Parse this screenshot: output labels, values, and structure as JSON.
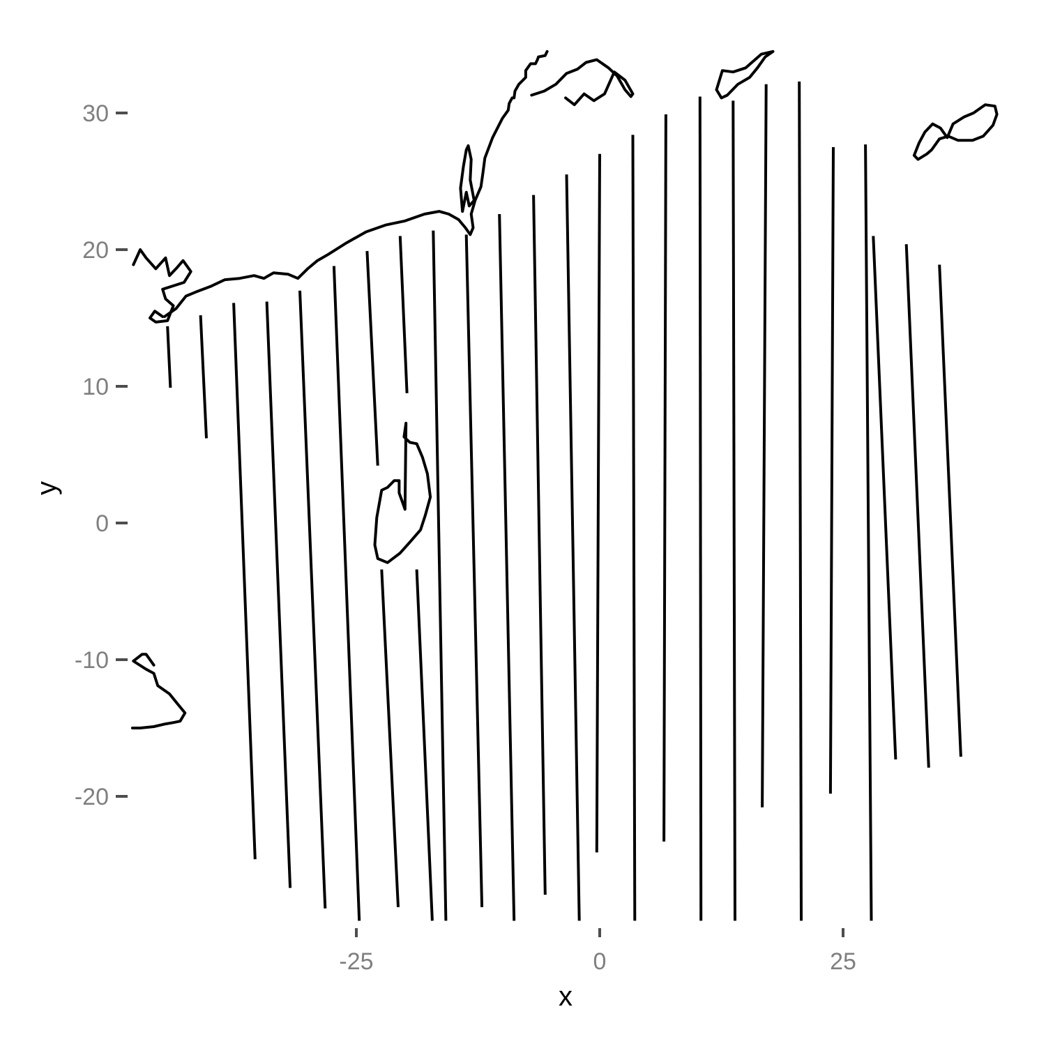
{
  "chart_data": {
    "type": "line",
    "title": "",
    "xlabel": "x",
    "ylabel": "y",
    "xlim": [
      -48,
      42
    ],
    "ylim": [
      -31.5,
      34.5
    ],
    "x_ticks": [
      -25,
      0,
      25
    ],
    "y_ticks": [
      -20,
      -10,
      0,
      10,
      20,
      30
    ],
    "x_tick_labels": [
      "-25",
      "0",
      "25"
    ],
    "y_tick_labels": [
      "-20",
      "-10",
      "0",
      "10",
      "20",
      "30"
    ],
    "grid": false,
    "legend": "none",
    "line_color": "#000000",
    "transects": [
      {
        "x": [
          -44.4,
          -44.1
        ],
        "y": [
          14.4,
          9.9
        ]
      },
      {
        "x": [
          -41.0,
          -40.4
        ],
        "y": [
          15.2,
          6.2
        ]
      },
      {
        "x": [
          -37.6,
          -35.4
        ],
        "y": [
          16.1,
          -24.6
        ]
      },
      {
        "x": [
          -34.2,
          -31.8
        ],
        "y": [
          16.2,
          -26.7
        ]
      },
      {
        "x": [
          -30.8,
          -28.2
        ],
        "y": [
          17.0,
          -28.2
        ]
      },
      {
        "x": [
          -27.3,
          -24.7
        ],
        "y": [
          18.8,
          -29.1
        ]
      },
      {
        "x": [
          -23.9,
          -22.8
        ],
        "y": [
          19.9,
          4.2
        ]
      },
      {
        "x": [
          -22.4,
          -20.7
        ],
        "y": [
          -3.4,
          -28.1
        ]
      },
      {
        "x": [
          -20.5,
          -19.8
        ],
        "y": [
          21.0,
          9.5
        ]
      },
      {
        "x": [
          -18.8,
          -17.2
        ],
        "y": [
          -3.4,
          -29.1
        ]
      },
      {
        "x": [
          -17.1,
          -15.8
        ],
        "y": [
          21.4,
          -29.1
        ]
      },
      {
        "x": [
          -13.7,
          -12.1
        ],
        "y": [
          21.1,
          -28.1
        ]
      },
      {
        "x": [
          -10.3,
          -8.8
        ],
        "y": [
          22.6,
          -29.1
        ]
      },
      {
        "x": [
          -6.8,
          -5.6
        ],
        "y": [
          24.0,
          -27.2
        ]
      },
      {
        "x": [
          -3.4,
          -2.1
        ],
        "y": [
          25.5,
          -29.1
        ]
      },
      {
        "x": [
          0.0,
          -0.3
        ],
        "y": [
          27.0,
          -24.1
        ]
      },
      {
        "x": [
          3.4,
          3.6
        ],
        "y": [
          28.4,
          -29.1
        ]
      },
      {
        "x": [
          6.8,
          6.6
        ],
        "y": [
          29.9,
          -23.3
        ]
      },
      {
        "x": [
          10.3,
          10.4
        ],
        "y": [
          31.2,
          -29.1
        ]
      },
      {
        "x": [
          13.7,
          13.9
        ],
        "y": [
          30.9,
          -29.1
        ]
      },
      {
        "x": [
          17.1,
          16.7
        ],
        "y": [
          32.1,
          -20.8
        ]
      },
      {
        "x": [
          20.5,
          20.7
        ],
        "y": [
          32.3,
          -29.1
        ]
      },
      {
        "x": [
          24.0,
          23.7
        ],
        "y": [
          27.5,
          -19.8
        ]
      },
      {
        "x": [
          27.3,
          27.9
        ],
        "y": [
          27.7,
          -29.1
        ]
      },
      {
        "x": [
          28.1,
          30.4
        ],
        "y": [
          21.0,
          -17.3
        ]
      },
      {
        "x": [
          31.5,
          33.8
        ],
        "y": [
          20.4,
          -17.9
        ]
      },
      {
        "x": [
          34.9,
          37.1
        ],
        "y": [
          18.9,
          -17.1
        ]
      }
    ],
    "coastlines": [
      {
        "name": "mainland",
        "x": [
          -44.7,
          -43.5,
          -42.5,
          -41.5,
          -40.0,
          -38.5,
          -37.0,
          -35.5,
          -34.5,
          -33.5,
          -32.0,
          -31.0,
          -30.0,
          -29.0,
          -28.0,
          -26.0,
          -24.0,
          -22.0,
          -20.0,
          -18.0,
          -16.5,
          -15.5,
          -14.5,
          -13.8,
          -13.3,
          -13.0,
          -13.2,
          -12.8,
          -12.2,
          -12.0,
          -11.8,
          -11.0,
          -10.0,
          -9.4,
          -9.3,
          -9.0,
          -8.8,
          -8.7,
          -8.3,
          -7.6,
          -7.6,
          -7.1,
          -6.6,
          -6.4,
          -6.3,
          -5.6,
          -5.4
        ],
        "y": [
          15.1,
          15.7,
          16.6,
          16.9,
          17.3,
          17.8,
          17.9,
          18.1,
          17.9,
          18.3,
          18.2,
          17.9,
          18.6,
          19.2,
          19.6,
          20.5,
          21.3,
          21.8,
          22.1,
          22.6,
          22.8,
          22.6,
          22.2,
          21.6,
          21.1,
          21.6,
          22.6,
          23.6,
          24.6,
          25.6,
          26.7,
          28.2,
          29.6,
          30.2,
          30.7,
          31.1,
          31.1,
          31.6,
          32.1,
          32.6,
          33.1,
          33.6,
          33.6,
          33.9,
          34.1,
          34.2,
          34.5
        ]
      },
      {
        "name": "west-inlets",
        "x": [
          -44.9,
          -45.7,
          -46.2,
          -45.6,
          -44.4,
          -43.8,
          -44.6,
          -44.9,
          -43.6,
          -42.7,
          -42.0,
          -42.8,
          -43.4,
          -44.2,
          -44.6,
          -45.6,
          -46.6,
          -47.2,
          -47.9
        ],
        "y": [
          15.1,
          15.5,
          15.0,
          14.7,
          14.8,
          15.9,
          16.4,
          17.1,
          17.4,
          17.6,
          18.4,
          19.2,
          18.7,
          18.1,
          19.4,
          18.6,
          19.4,
          20.0,
          18.9
        ]
      },
      {
        "name": "harbor-neck",
        "x": [
          -14.1,
          -14.3,
          -14.0,
          -13.7,
          -13.5,
          -13.2,
          -13.3,
          -12.9,
          -13.4,
          -13.7,
          -14.1
        ],
        "y": [
          22.8,
          24.5,
          26.1,
          27.3,
          27.6,
          26.6,
          25.1,
          23.6,
          23.2,
          24.2,
          22.8
        ]
      },
      {
        "name": "north-islands",
        "x": [
          -7.0,
          -5.7,
          -4.5,
          -3.4,
          -2.3,
          -1.4,
          -0.3,
          0.9,
          1.8,
          2.6,
          3.2,
          3.4,
          2.6,
          1.5,
          0.5,
          -0.6,
          -1.6,
          -2.6,
          -3.5
        ],
        "y": [
          31.3,
          31.6,
          32.1,
          32.9,
          33.2,
          33.7,
          33.9,
          33.3,
          32.7,
          31.7,
          31.2,
          31.4,
          32.4,
          33.0,
          31.4,
          30.9,
          31.4,
          30.6,
          31.1
        ]
      },
      {
        "name": "east-island-north",
        "x": [
          12.0,
          12.5,
          13.1,
          14.2,
          15.4,
          16.2,
          17.0,
          17.8,
          16.6,
          15.0,
          13.7,
          12.6,
          12.0
        ],
        "y": [
          31.7,
          31.1,
          31.3,
          32.1,
          32.6,
          33.3,
          34.1,
          34.5,
          34.3,
          33.3,
          33.0,
          33.1,
          31.7
        ]
      },
      {
        "name": "east-island",
        "x": [
          32.3,
          32.7,
          33.6,
          34.1,
          34.9,
          35.8,
          36.8,
          38.3,
          39.4,
          40.4,
          40.8,
          40.6,
          39.6,
          38.4,
          37.4,
          36.3,
          35.7,
          35.0,
          34.2,
          33.4,
          32.8,
          32.3
        ],
        "y": [
          26.9,
          26.6,
          27.0,
          27.3,
          28.1,
          28.3,
          28.0,
          28.0,
          28.3,
          29.1,
          29.9,
          30.5,
          30.6,
          30.0,
          29.7,
          29.2,
          28.2,
          28.9,
          29.2,
          28.6,
          27.8,
          26.9
        ]
      },
      {
        "name": "mid-island",
        "x": [
          -19.9,
          -20.1,
          -19.5,
          -18.8,
          -18.2,
          -17.7,
          -17.4,
          -17.9,
          -18.4,
          -19.5,
          -20.5,
          -21.8,
          -22.8,
          -23.1,
          -22.9,
          -22.4,
          -21.8,
          -21.1,
          -20.6,
          -20.6,
          -20.3,
          -20.0,
          -19.9
        ],
        "y": [
          7.3,
          6.3,
          5.9,
          5.8,
          4.8,
          3.6,
          1.9,
          0.6,
          -0.5,
          -1.4,
          -2.2,
          -2.9,
          -2.6,
          -1.6,
          0.4,
          2.4,
          2.6,
          3.1,
          3.1,
          2.2,
          1.6,
          1.0,
          7.3
        ]
      },
      {
        "name": "sw-island",
        "x": [
          -45.8,
          -46.6,
          -47.0,
          -47.9,
          -46.6,
          -45.8,
          -45.4,
          -44.2,
          -43.4,
          -42.6,
          -43.1,
          -43.8,
          -44.6,
          -45.8,
          -47.2,
          -48.0
        ],
        "y": [
          -10.4,
          -9.6,
          -9.6,
          -10.1,
          -10.7,
          -11.0,
          -11.9,
          -12.5,
          -13.2,
          -13.9,
          -14.5,
          -14.6,
          -14.7,
          -14.9,
          -15.0,
          -15.0
        ]
      }
    ]
  }
}
